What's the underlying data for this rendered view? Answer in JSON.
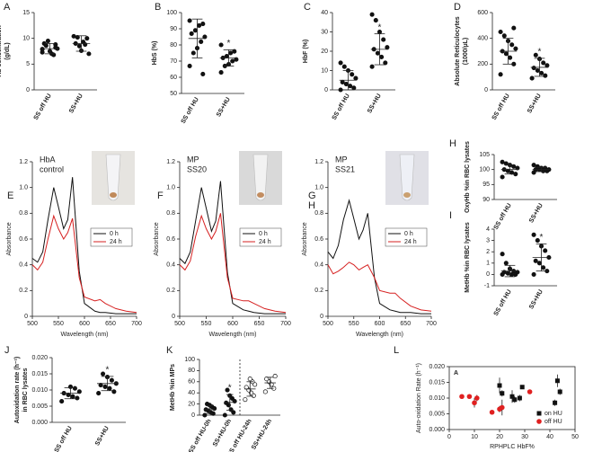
{
  "chart_data": [
    {
      "type": "strip",
      "panel": "A",
      "ylabel": [
        "Hb concentration",
        "(g/dL)"
      ],
      "categories": [
        "SS off HU",
        "SS+HU"
      ],
      "values": [
        [
          7.9,
          8.2,
          7.0,
          9.5,
          9.0,
          8.0,
          6.8,
          7.5,
          8.6,
          7.3,
          8.8
        ],
        [
          10.4,
          10.0,
          9.3,
          8.5,
          9.0,
          7.0,
          8.8,
          7.6,
          10.2
        ]
      ],
      "mean": [
        8.0,
        9.0
      ],
      "sd": [
        1.0,
        1.5
      ],
      "ylim": [
        0,
        15
      ],
      "yticks": [
        0,
        5,
        10,
        15
      ]
    },
    {
      "type": "strip",
      "panel": "B",
      "ylabel": [
        "HbS (%)"
      ],
      "categories": [
        "SS off HU",
        "SS+HU"
      ],
      "values": [
        [
          95,
          93,
          92,
          89,
          87,
          85,
          82,
          78,
          75,
          67,
          62
        ],
        [
          80,
          76,
          75,
          73,
          72,
          71,
          70,
          68,
          67,
          63
        ]
      ],
      "mean": [
        84,
        72
      ],
      "sd": [
        12,
        5
      ],
      "significance": [
        null,
        "*"
      ],
      "ylim": [
        50,
        100
      ],
      "yticks": [
        50,
        60,
        70,
        80,
        90,
        100
      ]
    },
    {
      "type": "strip",
      "panel": "C",
      "ylabel": [
        "HbF (%)"
      ],
      "categories": [
        "SS off HU",
        "SS+HU"
      ],
      "values": [
        [
          0,
          1,
          2,
          3,
          4,
          6,
          8,
          10,
          12,
          14
        ],
        [
          12,
          14,
          17,
          19,
          21,
          22,
          26,
          30,
          36,
          39
        ]
      ],
      "mean": [
        5,
        21
      ],
      "sd": [
        5,
        8
      ],
      "significance": [
        null,
        "*"
      ],
      "ylim": [
        0,
        40
      ],
      "yticks": [
        0,
        10,
        20,
        30,
        40
      ]
    },
    {
      "type": "strip",
      "panel": "D",
      "ylabel": [
        "Absolute Reticulocytes",
        "(1000/µL)"
      ],
      "categories": [
        "SS off HU",
        "SS+HU"
      ],
      "values": [
        [
          120,
          200,
          250,
          280,
          300,
          320,
          350,
          380,
          420,
          450,
          480
        ],
        [
          90,
          110,
          130,
          150,
          170,
          190,
          210,
          240,
          270
        ]
      ],
      "mean": [
        300,
        175
      ],
      "sd": [
        100,
        70
      ],
      "significance": [
        null,
        "*"
      ],
      "ylim": [
        0,
        600
      ],
      "yticks": [
        0,
        200,
        400,
        600
      ]
    },
    {
      "type": "line",
      "panel": "E",
      "annotation": [
        "HbA",
        "control"
      ],
      "xlabel": "Wavelength (nm)",
      "ylabel": "Absorbance",
      "x": [
        500,
        510,
        520,
        530,
        541,
        550,
        560,
        568,
        577,
        590,
        600,
        620,
        630,
        640,
        660,
        680,
        700
      ],
      "series": [
        {
          "name": "0 h",
          "color": "#111111",
          "values": [
            0.45,
            0.42,
            0.5,
            0.75,
            1.0,
            0.85,
            0.68,
            0.75,
            1.08,
            0.35,
            0.1,
            0.04,
            0.03,
            0.03,
            0.02,
            0.02,
            0.02
          ]
        },
        {
          "name": "24 h",
          "color": "#d62020",
          "values": [
            0.4,
            0.36,
            0.42,
            0.6,
            0.78,
            0.68,
            0.6,
            0.65,
            0.76,
            0.3,
            0.15,
            0.12,
            0.13,
            0.1,
            0.06,
            0.04,
            0.03
          ]
        }
      ],
      "xlim": [
        500,
        700
      ],
      "xticks": [
        500,
        550,
        600,
        650,
        700
      ],
      "ylim": [
        0,
        1.2
      ],
      "yticks": [
        0,
        0.2,
        0.4,
        0.6,
        0.8,
        {
          "value": 1,
          "label": "1.0"
        },
        1.2
      ]
    },
    {
      "type": "line",
      "panel": "F",
      "annotation": [
        "MP",
        "SS20"
      ],
      "xlabel": "Wavelength (nm)",
      "ylabel": "Absorbance",
      "x": [
        500,
        510,
        520,
        530,
        541,
        550,
        560,
        568,
        577,
        590,
        600,
        620,
        630,
        640,
        660,
        680,
        700
      ],
      "series": [
        {
          "name": "0 h",
          "color": "#111111",
          "values": [
            0.45,
            0.41,
            0.5,
            0.74,
            1.0,
            0.84,
            0.66,
            0.74,
            1.05,
            0.34,
            0.1,
            0.05,
            0.04,
            0.03,
            0.02,
            0.02,
            0.02
          ]
        },
        {
          "name": "24 h",
          "color": "#d62020",
          "values": [
            0.4,
            0.36,
            0.43,
            0.62,
            0.78,
            0.68,
            0.6,
            0.66,
            0.8,
            0.3,
            0.14,
            0.12,
            0.12,
            0.1,
            0.06,
            0.04,
            0.03
          ]
        }
      ],
      "xlim": [
        500,
        700
      ],
      "xticks": [
        500,
        550,
        600,
        650,
        700
      ],
      "ylim": [
        0,
        1.2
      ],
      "yticks": [
        0,
        0.2,
        0.4,
        0.6,
        0.8,
        {
          "value": 1,
          "label": "1.0"
        },
        1.2
      ]
    },
    {
      "type": "line",
      "panel": "G",
      "overlay_label": "H",
      "annotation": [
        "MP",
        "SS21"
      ],
      "xlabel": "Wavelength (nm)",
      "ylabel": "Absorbance",
      "x": [
        500,
        510,
        520,
        530,
        541,
        550,
        560,
        568,
        577,
        590,
        600,
        620,
        630,
        640,
        660,
        680,
        700
      ],
      "series": [
        {
          "name": "0 h",
          "color": "#111111",
          "values": [
            0.5,
            0.45,
            0.55,
            0.75,
            0.9,
            0.76,
            0.6,
            0.67,
            0.8,
            0.3,
            0.1,
            0.05,
            0.04,
            0.03,
            0.03,
            0.02,
            0.02
          ]
        },
        {
          "name": "24 h",
          "color": "#d62020",
          "values": [
            0.4,
            0.33,
            0.35,
            0.38,
            0.42,
            0.4,
            0.36,
            0.38,
            0.4,
            0.3,
            0.2,
            0.18,
            0.18,
            0.14,
            0.08,
            0.05,
            0.04
          ]
        }
      ],
      "xlim": [
        500,
        700
      ],
      "xticks": [
        500,
        550,
        600,
        650,
        700
      ],
      "ylim": [
        0,
        1.2
      ],
      "yticks": [
        0,
        0.2,
        0.4,
        0.6,
        0.8,
        {
          "value": 1,
          "label": "1.0"
        },
        1.2
      ]
    },
    {
      "type": "strip",
      "panel": "H",
      "ylabel": [
        "OxyHb %in RBC lysates"
      ],
      "categories": [
        "SS off HU",
        "SS+HU"
      ],
      "values": [
        [
          97.5,
          98.5,
          99,
          99.5,
          100,
          100.5,
          101,
          101.5,
          102,
          102.5
        ],
        [
          99,
          99.5,
          99.5,
          100,
          100,
          100,
          100.5,
          100.5,
          101,
          101.5
        ]
      ],
      "mean": [
        100,
        100
      ],
      "sd": [
        1.5,
        0.7
      ],
      "ylim": [
        90,
        105
      ],
      "yticks": [
        90,
        95,
        100,
        105
      ]
    },
    {
      "type": "strip",
      "panel": "I",
      "ylabel": [
        "MetHb %in RBC lysates"
      ],
      "categories": [
        "SS off HU",
        "SS+HU"
      ],
      "values": [
        [
          0,
          0,
          0,
          0.1,
          0.2,
          0.2,
          0.3,
          0.5,
          1.0,
          1.8
        ],
        [
          0,
          0.3,
          0.6,
          1,
          1.2,
          1.5,
          2.1,
          2.5,
          3.0,
          3.5
        ]
      ],
      "mean": [
        0.3,
        1.5
      ],
      "sd": [
        0.5,
        1.2
      ],
      "significance": [
        null,
        "*"
      ],
      "ylim": [
        -1,
        4
      ],
      "yticks": [
        -1,
        0,
        1,
        2,
        3,
        4
      ]
    },
    {
      "type": "strip",
      "panel": "J",
      "ylabel": [
        "Autoxidation rate (h⁻¹)",
        "in RBC lysates"
      ],
      "categories": [
        "SS off HU",
        "SS+HU"
      ],
      "values": [
        [
          0.0065,
          0.0075,
          0.008,
          0.0085,
          0.009,
          0.0095,
          0.0105,
          0.011
        ],
        [
          0.009,
          0.0095,
          0.0105,
          0.011,
          0.0115,
          0.012,
          0.013,
          0.014,
          0.015
        ]
      ],
      "mean": [
        0.009,
        0.012
      ],
      "sd": [
        0.0017,
        0.0022
      ],
      "significance": [
        null,
        "*"
      ],
      "ylim": [
        0,
        0.02
      ],
      "yticks": [
        {
          "value": 0,
          "label": "0.000"
        },
        {
          "value": 0.005,
          "label": "0.005"
        },
        {
          "value": 0.01,
          "label": "0.010"
        },
        {
          "value": 0.015,
          "label": "0.015"
        },
        {
          "value": 0.02,
          "label": "0.020"
        }
      ]
    },
    {
      "type": "strip",
      "panel": "K",
      "ylabel": [
        "MetHb %in MPs"
      ],
      "categories": [
        "SS off HU-0h",
        "SS+HU-0h",
        "SS off HU-24h",
        "SS+HU-24h"
      ],
      "values": [
        [
          0,
          3,
          5,
          8,
          10,
          12,
          15,
          18,
          20
        ],
        [
          0,
          5,
          10,
          18,
          22,
          25,
          30,
          35,
          45
        ],
        [
          28,
          35,
          40,
          45,
          50,
          55,
          60,
          65
        ],
        [
          42,
          48,
          55,
          60,
          65,
          70
        ]
      ],
      "mean": [
        10,
        23,
        47,
        58
      ],
      "sd": [
        7,
        14,
        13,
        10
      ],
      "significance": [
        null,
        "*",
        null,
        null
      ],
      "open": [
        false,
        false,
        true,
        true
      ],
      "ylim": [
        0,
        100
      ],
      "yticks": [
        0,
        20,
        40,
        60,
        80,
        100
      ]
    },
    {
      "type": "scatter",
      "panel": "L",
      "inner_label": "A",
      "xlabel": "RPHPLC HbF%",
      "ylabel": "Auto-oxidation Rate (h⁻¹)",
      "series": [
        {
          "name": "on HU",
          "color": "#111111",
          "marker": "square",
          "x": [
            20,
            21,
            25,
            26,
            28,
            29,
            42,
            43,
            44
          ],
          "values": [
            0.014,
            0.0115,
            0.0105,
            0.0095,
            0.01,
            0.0135,
            0.0085,
            0.0155,
            0.012
          ],
          "errors": [
            0.0025,
            0.001,
            0.002,
            0.001,
            0.001,
            0.0005,
            0.001,
            0.002,
            0.001
          ]
        },
        {
          "name": "off HU",
          "color": "#e02020",
          "marker": "circle",
          "x": [
            5,
            8,
            10,
            11,
            17,
            20,
            21,
            32
          ],
          "values": [
            0.0105,
            0.0105,
            0.0085,
            0.01,
            0.0055,
            0.0065,
            0.007,
            0.012
          ],
          "errors": [
            0.0005,
            0.0005,
            0.0015,
            0.001,
            0.0005,
            0.001,
            0.0025,
            0.0005
          ]
        }
      ],
      "legend": "lower right",
      "xlim": [
        0,
        50
      ],
      "xticks": [
        0,
        10,
        20,
        30,
        40,
        50
      ],
      "ylim": [
        0,
        0.02
      ],
      "yticks": [
        {
          "value": 0,
          "label": "0.000"
        },
        {
          "value": 0.005,
          "label": "0.005"
        },
        {
          "value": 0.01,
          "label": "0.010"
        },
        {
          "value": 0.015,
          "label": "0.015"
        },
        {
          "value": 0.02,
          "label": "0.020"
        }
      ]
    }
  ]
}
